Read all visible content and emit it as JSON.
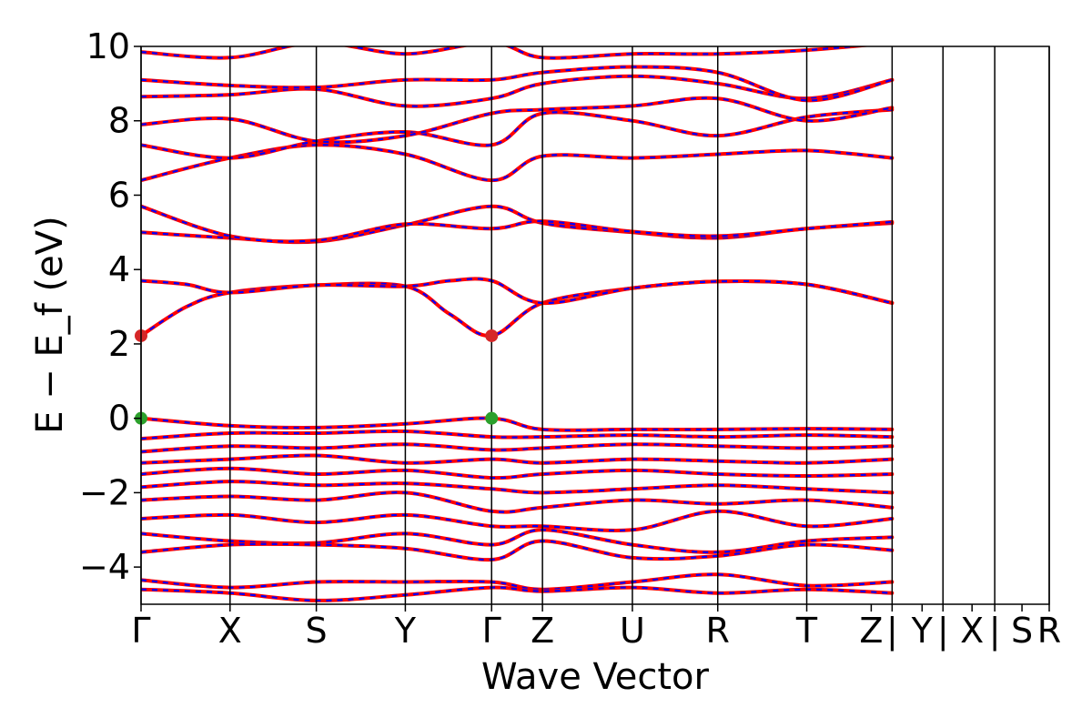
{
  "chart_data": {
    "type": "line",
    "subtype": "electronic-band-structure",
    "xlabel": "Wave Vector",
    "ylabel": "E − E_f (eV)",
    "ylim": [
      -5,
      10
    ],
    "yticks": [
      -4,
      -2,
      0,
      2,
      4,
      6,
      8,
      10
    ],
    "grid": false,
    "legend": "none",
    "kpath": [
      {
        "label": "Γ",
        "x": 0
      },
      {
        "label": "X",
        "x": 0.098
      },
      {
        "label": "S",
        "x": 0.193
      },
      {
        "label": "Y",
        "x": 0.291
      },
      {
        "label": "Γ",
        "x": 0.386
      },
      {
        "label": "Z",
        "x": 0.442
      },
      {
        "label": "U",
        "x": 0.541
      },
      {
        "label": "R",
        "x": 0.635
      },
      {
        "label": "T",
        "x": 0.733
      },
      {
        "label": "Z",
        "x": 0.804
      },
      {
        "label": "|",
        "x": 0.827
      },
      {
        "label": "Y",
        "x": 0.86
      },
      {
        "label": "|",
        "x": 0.883
      },
      {
        "label": "X",
        "x": 0.915
      },
      {
        "label": "|",
        "x": 0.94
      },
      {
        "label": "S",
        "x": 0.97
      },
      {
        "label": "R",
        "x": 1.0
      }
    ],
    "segment_boundaries": [
      0,
      0.098,
      0.193,
      0.291,
      0.386,
      0.442,
      0.541,
      0.635,
      0.733,
      0.827,
      0.883,
      0.94,
      1.0
    ],
    "band_gap": {
      "vbm": 0.0,
      "cbm": 2.22,
      "gap_eV": 2.22,
      "vbm_kpoint": "Γ",
      "cbm_kpoint": "Γ"
    },
    "extrema_markers": [
      {
        "type": "cbm",
        "x": 0.0,
        "y": 2.22,
        "color": "#d62728"
      },
      {
        "type": "cbm",
        "x": 0.386,
        "y": 2.22,
        "color": "#d62728"
      },
      {
        "type": "vbm",
        "x": 0.0,
        "y": 0.0,
        "color": "#2ca02c"
      },
      {
        "type": "vbm",
        "x": 0.386,
        "y": 0.0,
        "color": "#2ca02c"
      }
    ],
    "series": [
      {
        "style": "solid",
        "color": "#ff0000"
      },
      {
        "style": "dashed",
        "color": "#0000ff"
      }
    ],
    "bands": [
      {
        "region": "conduction",
        "points": [
          [
            0,
            2.22
          ],
          [
            0.05,
            3.0
          ],
          [
            0.098,
            3.38
          ],
          [
            0.193,
            3.58
          ],
          [
            0.291,
            3.55
          ],
          [
            0.34,
            2.8
          ],
          [
            0.386,
            2.22
          ],
          [
            0.442,
            3.1
          ],
          [
            0.541,
            3.5
          ],
          [
            0.635,
            3.68
          ],
          [
            0.733,
            3.6
          ],
          [
            0.827,
            3.1
          ]
        ]
      },
      {
        "region": "conduction",
        "points": [
          [
            0,
            3.7
          ],
          [
            0.05,
            3.6
          ],
          [
            0.098,
            3.38
          ],
          [
            0.193,
            3.58
          ],
          [
            0.291,
            3.55
          ],
          [
            0.34,
            3.7
          ],
          [
            0.386,
            3.7
          ],
          [
            0.442,
            3.1
          ],
          [
            0.541,
            3.5
          ],
          [
            0.635,
            3.68
          ],
          [
            0.733,
            3.6
          ],
          [
            0.827,
            3.1
          ]
        ]
      },
      {
        "region": "conduction",
        "points": [
          [
            0,
            5.0
          ],
          [
            0.098,
            4.85
          ],
          [
            0.193,
            4.75
          ],
          [
            0.291,
            5.2
          ],
          [
            0.386,
            5.7
          ],
          [
            0.442,
            5.25
          ],
          [
            0.541,
            5.0
          ],
          [
            0.635,
            4.85
          ],
          [
            0.733,
            5.1
          ],
          [
            0.827,
            5.25
          ]
        ]
      },
      {
        "region": "conduction",
        "points": [
          [
            0,
            5.7
          ],
          [
            0.098,
            4.9
          ],
          [
            0.193,
            4.78
          ],
          [
            0.291,
            5.22
          ],
          [
            0.386,
            5.1
          ],
          [
            0.442,
            5.3
          ],
          [
            0.541,
            5.02
          ],
          [
            0.635,
            4.9
          ],
          [
            0.733,
            5.1
          ],
          [
            0.827,
            5.28
          ]
        ]
      },
      {
        "region": "conduction",
        "points": [
          [
            0,
            6.4
          ],
          [
            0.098,
            7.0
          ],
          [
            0.193,
            7.35
          ],
          [
            0.291,
            7.1
          ],
          [
            0.386,
            6.4
          ],
          [
            0.442,
            7.05
          ],
          [
            0.541,
            7.0
          ],
          [
            0.635,
            7.1
          ],
          [
            0.733,
            7.2
          ],
          [
            0.827,
            7.0
          ]
        ]
      },
      {
        "region": "conduction",
        "points": [
          [
            0,
            7.35
          ],
          [
            0.098,
            7.0
          ],
          [
            0.193,
            7.45
          ],
          [
            0.291,
            7.7
          ],
          [
            0.386,
            7.35
          ],
          [
            0.442,
            8.2
          ],
          [
            0.541,
            8.0
          ],
          [
            0.635,
            7.6
          ],
          [
            0.733,
            8.1
          ],
          [
            0.827,
            8.3
          ]
        ]
      },
      {
        "region": "conduction",
        "points": [
          [
            0,
            7.9
          ],
          [
            0.098,
            8.05
          ],
          [
            0.193,
            7.45
          ],
          [
            0.291,
            7.6
          ],
          [
            0.386,
            8.2
          ],
          [
            0.442,
            8.3
          ],
          [
            0.541,
            8.4
          ],
          [
            0.635,
            8.6
          ],
          [
            0.733,
            8.0
          ],
          [
            0.827,
            8.35
          ]
        ]
      },
      {
        "region": "conduction",
        "points": [
          [
            0,
            8.65
          ],
          [
            0.098,
            8.7
          ],
          [
            0.193,
            8.85
          ],
          [
            0.291,
            8.4
          ],
          [
            0.386,
            8.6
          ],
          [
            0.442,
            9.0
          ],
          [
            0.541,
            9.2
          ],
          [
            0.635,
            9.0
          ],
          [
            0.733,
            8.6
          ],
          [
            0.827,
            9.1
          ]
        ]
      },
      {
        "region": "conduction",
        "points": [
          [
            0,
            9.1
          ],
          [
            0.098,
            8.95
          ],
          [
            0.193,
            8.9
          ],
          [
            0.291,
            9.1
          ],
          [
            0.386,
            9.1
          ],
          [
            0.442,
            9.3
          ],
          [
            0.541,
            9.45
          ],
          [
            0.635,
            9.3
          ],
          [
            0.733,
            8.55
          ],
          [
            0.827,
            9.1
          ]
        ]
      },
      {
        "region": "conduction",
        "points": [
          [
            0,
            9.85
          ],
          [
            0.098,
            9.7
          ],
          [
            0.193,
            10.1
          ],
          [
            0.291,
            9.8
          ],
          [
            0.386,
            10.1
          ],
          [
            0.442,
            9.7
          ],
          [
            0.541,
            9.8
          ],
          [
            0.635,
            9.8
          ],
          [
            0.733,
            9.9
          ],
          [
            0.827,
            10.1
          ]
        ]
      },
      {
        "region": "valence",
        "points": [
          [
            0,
            0.0
          ],
          [
            0.098,
            -0.2
          ],
          [
            0.193,
            -0.25
          ],
          [
            0.291,
            -0.15
          ],
          [
            0.386,
            0.0
          ],
          [
            0.442,
            -0.3
          ],
          [
            0.541,
            -0.3
          ],
          [
            0.635,
            -0.3
          ],
          [
            0.733,
            -0.28
          ],
          [
            0.827,
            -0.3
          ]
        ]
      },
      {
        "region": "valence",
        "points": [
          [
            0,
            -0.55
          ],
          [
            0.098,
            -0.4
          ],
          [
            0.193,
            -0.4
          ],
          [
            0.291,
            -0.35
          ],
          [
            0.386,
            -0.5
          ],
          [
            0.442,
            -0.5
          ],
          [
            0.541,
            -0.45
          ],
          [
            0.635,
            -0.5
          ],
          [
            0.733,
            -0.45
          ],
          [
            0.827,
            -0.5
          ]
        ]
      },
      {
        "region": "valence",
        "points": [
          [
            0,
            -0.9
          ],
          [
            0.098,
            -0.75
          ],
          [
            0.193,
            -0.8
          ],
          [
            0.291,
            -0.7
          ],
          [
            0.386,
            -0.85
          ],
          [
            0.442,
            -0.8
          ],
          [
            0.541,
            -0.7
          ],
          [
            0.635,
            -0.75
          ],
          [
            0.733,
            -0.8
          ],
          [
            0.827,
            -0.75
          ]
        ]
      },
      {
        "region": "valence",
        "points": [
          [
            0,
            -1.2
          ],
          [
            0.098,
            -1.1
          ],
          [
            0.193,
            -1.0
          ],
          [
            0.291,
            -1.2
          ],
          [
            0.386,
            -1.1
          ],
          [
            0.442,
            -1.2
          ],
          [
            0.541,
            -1.1
          ],
          [
            0.635,
            -1.15
          ],
          [
            0.733,
            -1.2
          ],
          [
            0.827,
            -1.1
          ]
        ]
      },
      {
        "region": "valence",
        "points": [
          [
            0,
            -1.5
          ],
          [
            0.098,
            -1.35
          ],
          [
            0.193,
            -1.5
          ],
          [
            0.291,
            -1.4
          ],
          [
            0.386,
            -1.6
          ],
          [
            0.442,
            -1.5
          ],
          [
            0.541,
            -1.4
          ],
          [
            0.635,
            -1.5
          ],
          [
            0.733,
            -1.55
          ],
          [
            0.827,
            -1.5
          ]
        ]
      },
      {
        "region": "valence",
        "points": [
          [
            0,
            -1.85
          ],
          [
            0.098,
            -1.7
          ],
          [
            0.193,
            -1.8
          ],
          [
            0.291,
            -1.75
          ],
          [
            0.386,
            -1.9
          ],
          [
            0.442,
            -2.0
          ],
          [
            0.541,
            -1.9
          ],
          [
            0.635,
            -1.8
          ],
          [
            0.733,
            -1.9
          ],
          [
            0.827,
            -2.0
          ]
        ]
      },
      {
        "region": "valence",
        "points": [
          [
            0,
            -2.2
          ],
          [
            0.098,
            -2.1
          ],
          [
            0.193,
            -2.2
          ],
          [
            0.291,
            -2.0
          ],
          [
            0.386,
            -2.5
          ],
          [
            0.442,
            -2.4
          ],
          [
            0.541,
            -2.2
          ],
          [
            0.635,
            -2.3
          ],
          [
            0.733,
            -2.2
          ],
          [
            0.827,
            -2.4
          ]
        ]
      },
      {
        "region": "valence",
        "points": [
          [
            0,
            -2.7
          ],
          [
            0.098,
            -2.6
          ],
          [
            0.193,
            -2.8
          ],
          [
            0.291,
            -2.6
          ],
          [
            0.386,
            -2.9
          ],
          [
            0.442,
            -2.9
          ],
          [
            0.541,
            -3.0
          ],
          [
            0.635,
            -2.5
          ],
          [
            0.733,
            -2.9
          ],
          [
            0.827,
            -2.7
          ]
        ]
      },
      {
        "region": "valence",
        "points": [
          [
            0,
            -3.1
          ],
          [
            0.098,
            -3.3
          ],
          [
            0.193,
            -3.35
          ],
          [
            0.291,
            -3.1
          ],
          [
            0.386,
            -3.4
          ],
          [
            0.442,
            -3.0
          ],
          [
            0.541,
            -3.4
          ],
          [
            0.635,
            -3.6
          ],
          [
            0.733,
            -3.3
          ],
          [
            0.827,
            -3.2
          ]
        ]
      },
      {
        "region": "valence",
        "points": [
          [
            0,
            -3.6
          ],
          [
            0.098,
            -3.4
          ],
          [
            0.193,
            -3.4
          ],
          [
            0.291,
            -3.5
          ],
          [
            0.386,
            -3.8
          ],
          [
            0.442,
            -3.3
          ],
          [
            0.541,
            -3.75
          ],
          [
            0.635,
            -3.7
          ],
          [
            0.733,
            -3.4
          ],
          [
            0.827,
            -3.55
          ]
        ]
      },
      {
        "region": "valence",
        "points": [
          [
            0,
            -4.35
          ],
          [
            0.098,
            -4.55
          ],
          [
            0.193,
            -4.4
          ],
          [
            0.291,
            -4.4
          ],
          [
            0.386,
            -4.4
          ],
          [
            0.442,
            -4.6
          ],
          [
            0.541,
            -4.4
          ],
          [
            0.635,
            -4.2
          ],
          [
            0.733,
            -4.5
          ],
          [
            0.827,
            -4.4
          ]
        ]
      },
      {
        "region": "valence",
        "points": [
          [
            0,
            -4.6
          ],
          [
            0.098,
            -4.7
          ],
          [
            0.193,
            -4.9
          ],
          [
            0.291,
            -4.75
          ],
          [
            0.386,
            -4.55
          ],
          [
            0.442,
            -4.65
          ],
          [
            0.541,
            -4.55
          ],
          [
            0.635,
            -4.7
          ],
          [
            0.733,
            -4.6
          ],
          [
            0.827,
            -4.7
          ]
        ]
      }
    ]
  }
}
